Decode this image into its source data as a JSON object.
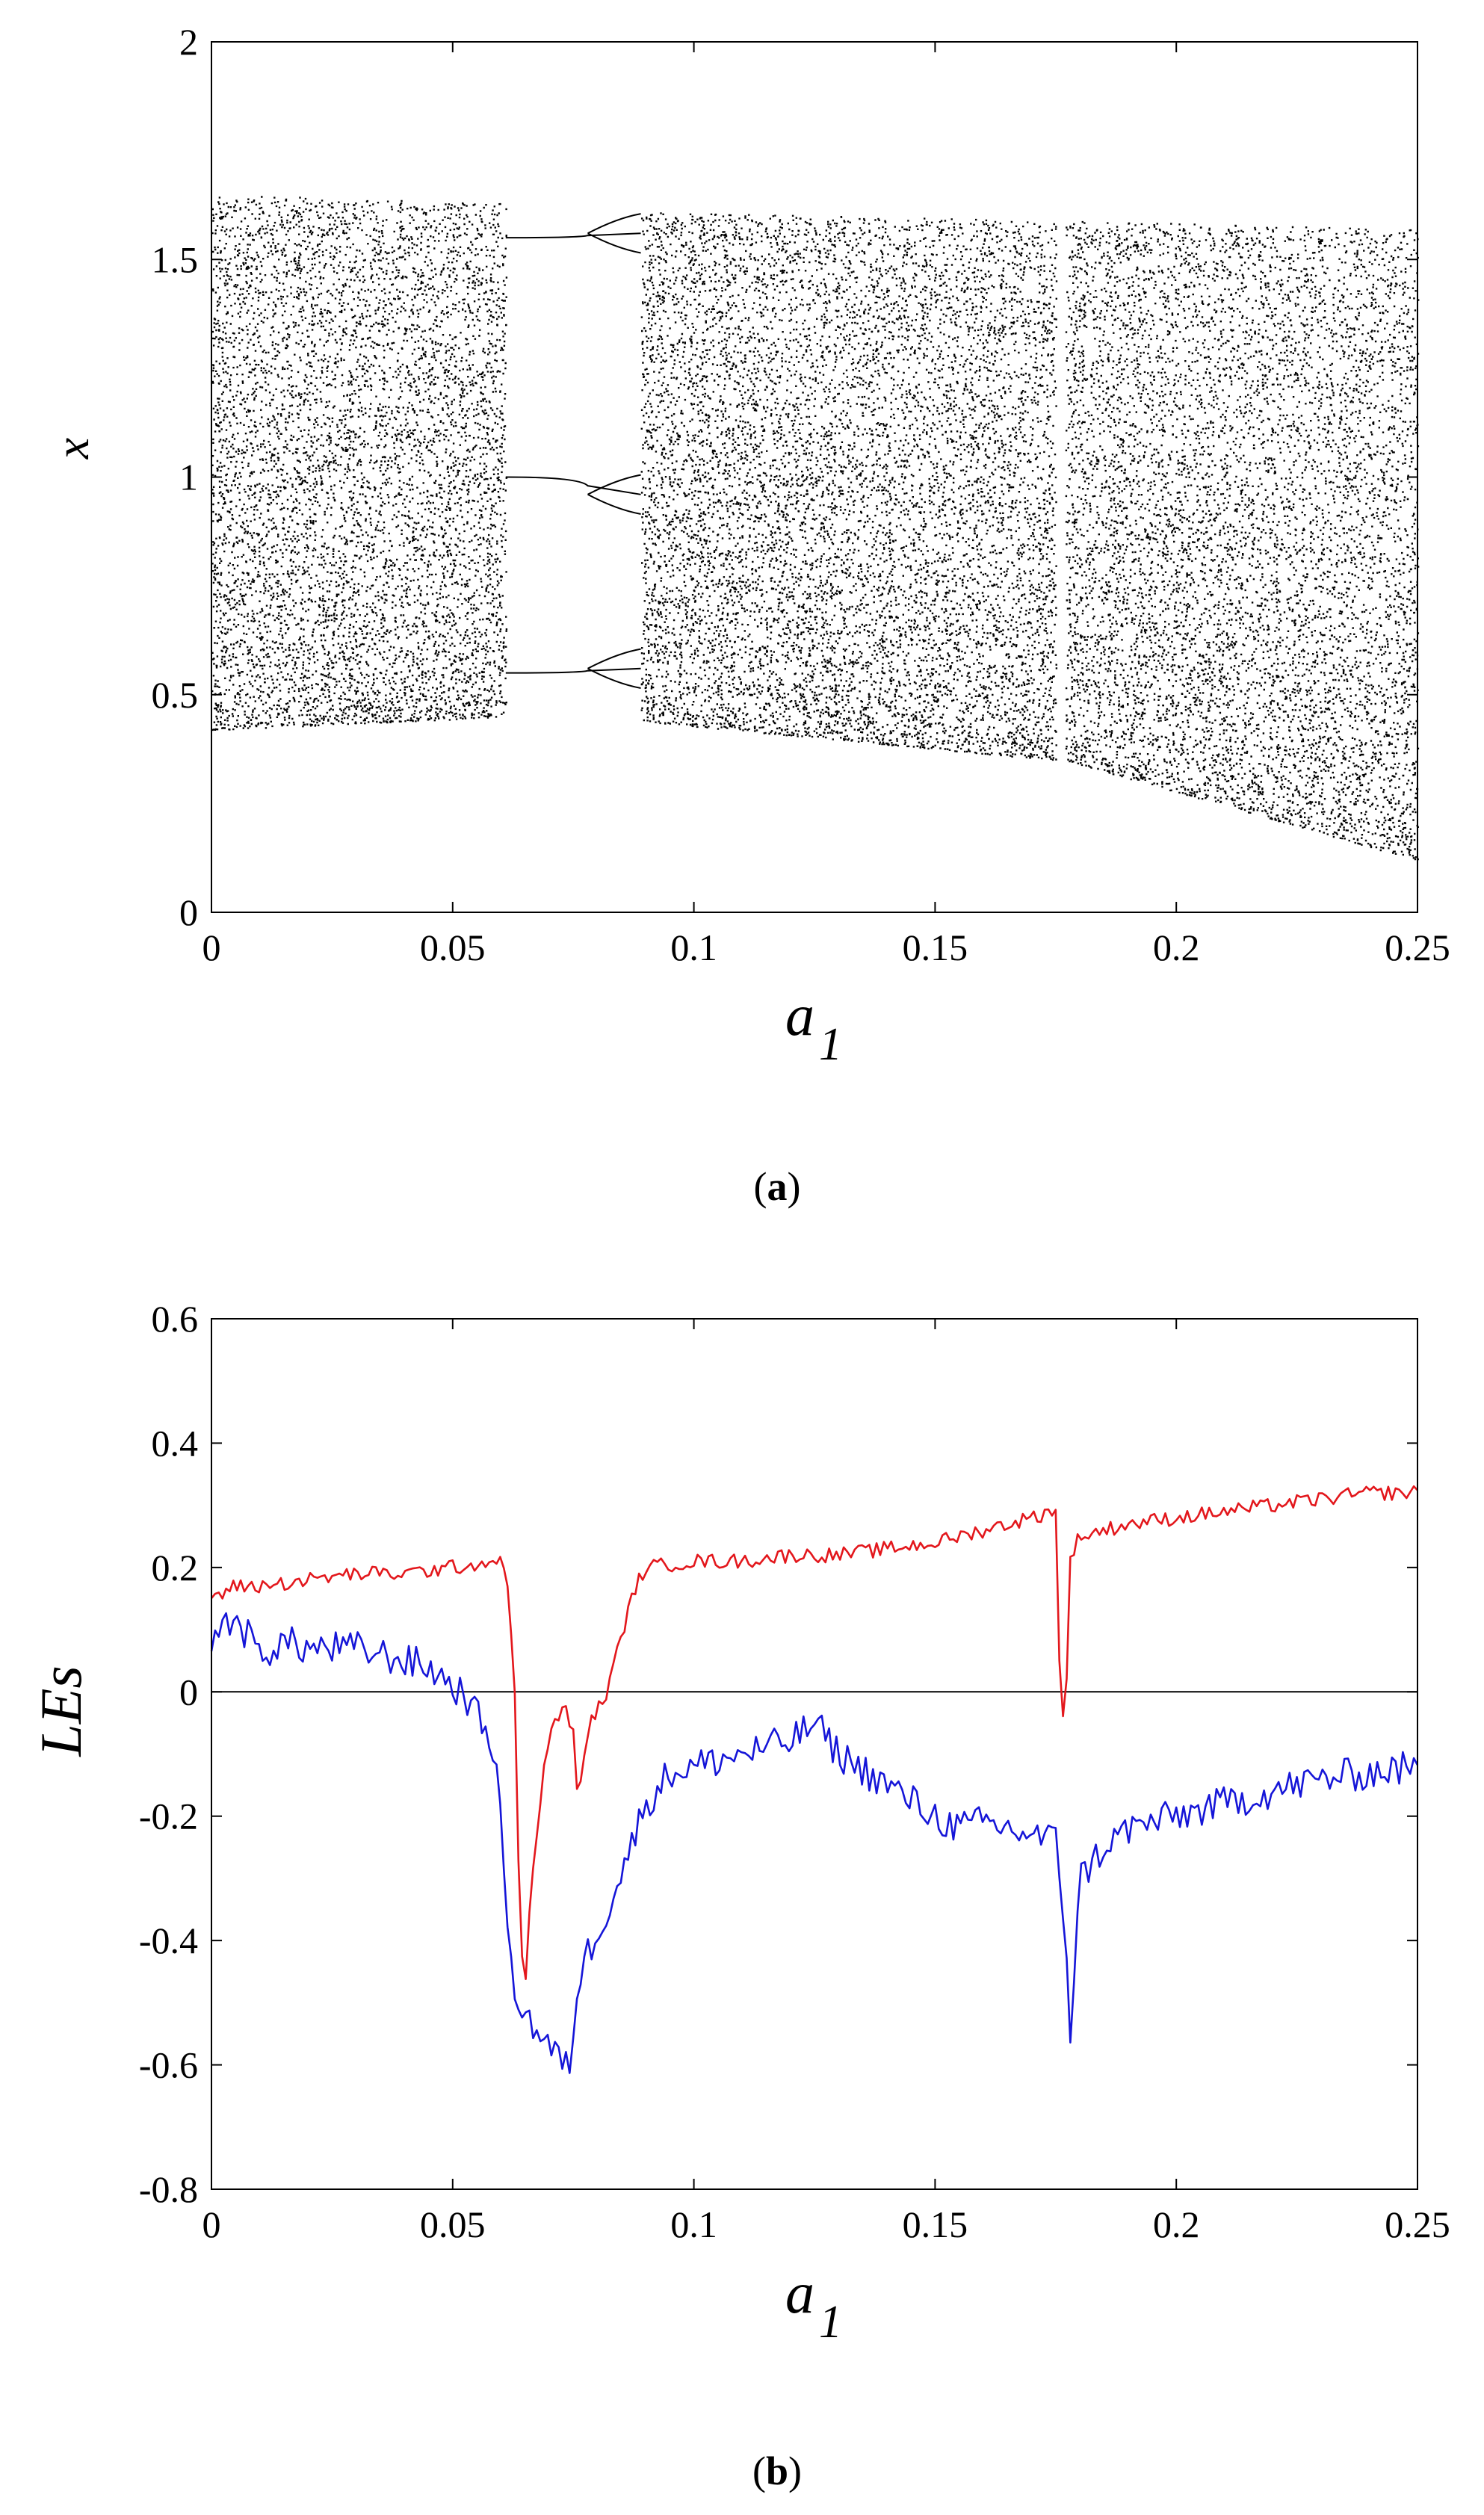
{
  "chart_data": [
    {
      "type": "scatter",
      "name": "bifurcation-diagram",
      "caption_letter": "a",
      "xlabel_main": "a",
      "xlabel_sub": "1",
      "ylabel": "x",
      "xlim": [
        0,
        0.25
      ],
      "ylim": [
        0,
        2
      ],
      "xticks": [
        0,
        0.05,
        0.1,
        0.15,
        0.2,
        0.25
      ],
      "xtick_labels": [
        "0",
        "0.05",
        "0.1",
        "0.15",
        "0.2",
        "0.25"
      ],
      "yticks": [
        0,
        0.5,
        1,
        1.5,
        2
      ],
      "ytick_labels": [
        "0",
        "0.5",
        "1",
        "1.5",
        "2"
      ],
      "color": "#000000",
      "chaotic_regions": [
        {
          "a_start": 0.0,
          "a_end": 0.061,
          "x_min_start": 0.42,
          "x_min_end": 0.45,
          "x_max_start": 1.65,
          "x_max_end": 1.63
        },
        {
          "a_start": 0.089,
          "a_end": 0.175,
          "x_min_start": 0.44,
          "x_min_end": 0.35,
          "x_max_start": 1.61,
          "x_max_end": 1.59
        },
        {
          "a_start": 0.177,
          "a_end": 0.25,
          "x_min_start": 0.35,
          "x_min_end": 0.12,
          "x_max_start": 1.59,
          "x_max_end": 1.57
        }
      ],
      "periodic_window": {
        "a_start": 0.061,
        "a_end": 0.089,
        "branches": [
          {
            "x_start": 1.55,
            "x_end": 1.56
          },
          {
            "x_start": 1.0,
            "x_end": 0.96
          },
          {
            "x_start": 0.55,
            "x_end": 0.56
          }
        ]
      }
    },
    {
      "type": "line",
      "name": "lyapunov-exponents",
      "caption_letter": "b",
      "xlabel_main": "a",
      "xlabel_sub": "1",
      "ylabel": "LEs",
      "xlim": [
        0,
        0.25
      ],
      "ylim": [
        -0.8,
        0.6
      ],
      "xticks": [
        0,
        0.05,
        0.1,
        0.15,
        0.2,
        0.25
      ],
      "xtick_labels": [
        "0",
        "0.05",
        "0.1",
        "0.15",
        "0.2",
        "0.25"
      ],
      "yticks": [
        -0.8,
        -0.6,
        -0.4,
        -0.2,
        0,
        0.2,
        0.4,
        0.6
      ],
      "ytick_labels": [
        "-0.8",
        "-0.6",
        "-0.4",
        "-0.2",
        "0",
        "0.2",
        "0.4",
        "0.6"
      ],
      "zero_line": true,
      "series": [
        {
          "name": "LE1",
          "color": "#e3171c",
          "x": [
            0,
            0.005,
            0.01,
            0.02,
            0.03,
            0.04,
            0.05,
            0.059,
            0.061,
            0.063,
            0.064,
            0.065,
            0.066,
            0.068,
            0.07,
            0.073,
            0.075,
            0.076,
            0.078,
            0.08,
            0.082,
            0.084,
            0.086,
            0.088,
            0.09,
            0.1,
            0.11,
            0.12,
            0.13,
            0.14,
            0.15,
            0.16,
            0.17,
            0.174,
            0.175,
            0.176,
            0.177,
            0.178,
            0.18,
            0.19,
            0.2,
            0.21,
            0.22,
            0.23,
            0.24,
            0.25
          ],
          "y": [
            0.15,
            0.17,
            0.17,
            0.18,
            0.19,
            0.19,
            0.2,
            0.21,
            0.21,
            -0.02,
            -0.4,
            -0.48,
            -0.35,
            -0.18,
            -0.07,
            -0.02,
            -0.07,
            -0.18,
            -0.06,
            -0.03,
            0.0,
            0.06,
            0.12,
            0.17,
            0.2,
            0.21,
            0.21,
            0.22,
            0.22,
            0.23,
            0.24,
            0.26,
            0.28,
            0.29,
            0.3,
            -0.03,
            -0.06,
            0.22,
            0.25,
            0.27,
            0.28,
            0.29,
            0.3,
            0.31,
            0.32,
            0.32
          ],
          "jitter": 0.012
        },
        {
          "name": "LE2",
          "color": "#1515d8",
          "x": [
            0,
            0.005,
            0.01,
            0.015,
            0.02,
            0.03,
            0.04,
            0.045,
            0.05,
            0.053,
            0.055,
            0.058,
            0.06,
            0.062,
            0.064,
            0.066,
            0.07,
            0.074,
            0.076,
            0.078,
            0.082,
            0.086,
            0.09,
            0.095,
            0.1,
            0.11,
            0.12,
            0.125,
            0.13,
            0.14,
            0.15,
            0.155,
            0.16,
            0.17,
            0.175,
            0.177,
            0.178,
            0.18,
            0.185,
            0.19,
            0.2,
            0.21,
            0.22,
            0.23,
            0.24,
            0.25
          ],
          "y": [
            0.09,
            0.12,
            0.06,
            0.08,
            0.07,
            0.07,
            0.05,
            0.04,
            0.01,
            -0.01,
            -0.04,
            -0.07,
            -0.2,
            -0.45,
            -0.5,
            -0.53,
            -0.57,
            -0.61,
            -0.47,
            -0.42,
            -0.35,
            -0.27,
            -0.18,
            -0.13,
            -0.12,
            -0.1,
            -0.08,
            -0.05,
            -0.1,
            -0.15,
            -0.2,
            -0.22,
            -0.21,
            -0.23,
            -0.24,
            -0.38,
            -0.55,
            -0.3,
            -0.25,
            -0.22,
            -0.2,
            -0.18,
            -0.16,
            -0.14,
            -0.13,
            -0.12
          ],
          "jitter": 0.028
        }
      ]
    }
  ]
}
